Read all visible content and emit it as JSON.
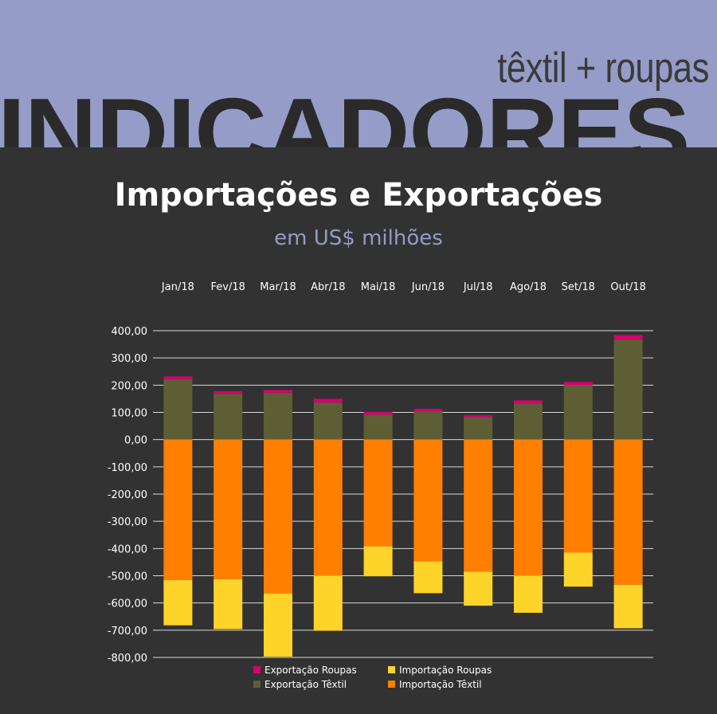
{
  "header": {
    "brand_subtitle": "têxtil + roupas",
    "brand_title": "INDICADORES"
  },
  "colors": {
    "banner": "#949cc7",
    "background": "#323232",
    "exportacao_roupas": "#d6006f",
    "exportacao_textil": "#5e5e35",
    "importacao_roupas": "#ffd42a",
    "importacao_textil": "#ff7f00"
  },
  "chart_data": {
    "type": "bar",
    "stacked": true,
    "title": "Importações e Exportações",
    "subtitle": "em US$ milhões",
    "categories": [
      "Jan/18",
      "Fev/18",
      "Mar/18",
      "Abr/18",
      "Mai/18",
      "Jun/18",
      "Jul/18",
      "Ago/18",
      "Set/18",
      "Out/18"
    ],
    "category_axis_position": "top",
    "ylim": [
      -800,
      400
    ],
    "yticks": [
      "400,00",
      "300,00",
      "200,00",
      "100,00",
      "0,00",
      "-100,00",
      "-200,00",
      "-300,00",
      "-400,00",
      "-500,00",
      "-600,00",
      "-700,00",
      "-800,00"
    ],
    "grid": true,
    "legend_position": "bottom",
    "series": [
      {
        "name": "Exportação Têxtil",
        "color": "#5e5e35",
        "values": [
          222,
          168,
          172,
          136,
          92,
          103,
          82,
          132,
          200,
          367
        ]
      },
      {
        "name": "Exportação Roupas",
        "color": "#d6006f",
        "values": [
          10,
          10,
          10,
          14,
          10,
          10,
          8,
          12,
          12,
          17
        ]
      },
      {
        "name": "Importação Têxtil",
        "color": "#ff7f00",
        "values": [
          -516,
          -513,
          -565,
          -500,
          -392,
          -447,
          -485,
          -500,
          -415,
          -533
        ]
      },
      {
        "name": "Importação Roupas",
        "color": "#ffd42a",
        "values": [
          -166,
          -183,
          -232,
          -202,
          -110,
          -117,
          -125,
          -136,
          -125,
          -160
        ]
      }
    ],
    "legend": [
      {
        "name": "Exportação Roupas",
        "color": "#d6006f"
      },
      {
        "name": "Importação Roupas",
        "color": "#ffd42a"
      },
      {
        "name": "Exportação Têxtil",
        "color": "#5e5e35"
      },
      {
        "name": "Importação Têxtil",
        "color": "#ff7f00"
      }
    ]
  }
}
